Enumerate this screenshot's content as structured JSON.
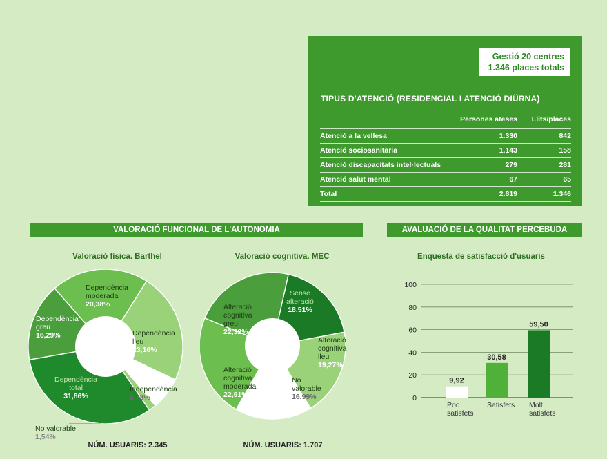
{
  "summary": {
    "line1": "Gestió 20 centres",
    "line2": "1.346 places totals"
  },
  "care_types": {
    "title": "TIPUS D'ATENCIÓ (RESIDENCIAL I ATENCIÓ DIÜRNA)",
    "columns": [
      "",
      "Persones ateses",
      "Llits/places"
    ],
    "rows": [
      [
        "Atenció a la vellesa",
        "1.330",
        "842"
      ],
      [
        "Atenció sociosanitària",
        "1.143",
        "158"
      ],
      [
        "Atenció discapacitats intel·lectuals",
        "279",
        "281"
      ],
      [
        "Atenció salut mental",
        "67",
        "65"
      ],
      [
        "Total",
        "2.819",
        "1.346"
      ]
    ]
  },
  "sections": {
    "functional": "VALORACIÓ FUNCIONAL DE L'AUTONOMIA",
    "quality": "AVALUACIÓ DE LA QUALITAT PERCEBUDA"
  },
  "users": {
    "barthel": "NÚM. USUARIS: 2.345",
    "mec": "NÚM. USUARIS: 1.707"
  },
  "colors": {
    "dark_green": "#1a7a26",
    "mid_green": "#3f9a2e",
    "light_green": "#6cbf4f",
    "pale_green": "#9ad27a",
    "white": "#ffffff",
    "background": "#d5ebc4"
  },
  "chart_data": [
    {
      "type": "pie",
      "title": "Valoració física. Barthel",
      "slices": [
        {
          "label": "Dependència moderada",
          "value": 20.38,
          "display": "20,38%",
          "color": "#6cbf4f"
        },
        {
          "label": "Dependència lleu",
          "value": 23.16,
          "display": "23,16%",
          "color": "#9ad27a"
        },
        {
          "label": "Independència",
          "value": 6.78,
          "display": "6,78%",
          "color": "#ffffff"
        },
        {
          "label": "No valorable",
          "value": 1.54,
          "display": "1,54%",
          "color": "#9ad27a"
        },
        {
          "label": "Dependència total",
          "value": 31.86,
          "display": "31,86%",
          "color": "#1f8a2c"
        },
        {
          "label": "Dependència greu",
          "value": 16.29,
          "display": "16,29%",
          "color": "#4a9f3c"
        }
      ]
    },
    {
      "type": "pie",
      "title": "Valoració cognitiva. MEC",
      "slices": [
        {
          "label": "Sense alteració",
          "value": 18.51,
          "display": "18,51%",
          "color": "#1a7a26"
        },
        {
          "label": "Alteració cognitiva lleu",
          "value": 19.27,
          "display": "19,27%",
          "color": "#9ad27a"
        },
        {
          "label": "No valorable",
          "value": 16.99,
          "display": "16,99%",
          "color": "#ffffff"
        },
        {
          "label": "Alteració cognitiva moderada",
          "value": 22.91,
          "display": "22,91%",
          "color": "#6cbf4f"
        },
        {
          "label": "Alteració cognitiva greu",
          "value": 22.32,
          "display": "22,32%",
          "color": "#4a9f3c"
        }
      ]
    },
    {
      "type": "bar",
      "title": "Enquesta de satisfacció d'usuaris",
      "categories": [
        "Poc satisfets",
        "Satisfets",
        "Molt satisfets"
      ],
      "values": [
        9.92,
        30.58,
        59.5
      ],
      "value_labels": [
        "9,92",
        "30,58",
        "59,50"
      ],
      "bar_colors": [
        "#ffffff",
        "#4fb03a",
        "#1a7a26"
      ],
      "ylim": [
        0,
        100
      ],
      "yticks": [
        0,
        20,
        40,
        60,
        80,
        100
      ],
      "grid": true
    }
  ]
}
